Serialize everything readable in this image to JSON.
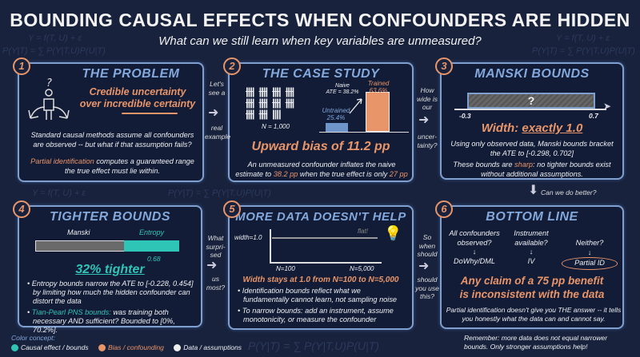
{
  "header": {
    "title": "BOUNDING CAUSAL EFFECTS WHEN CONFOUNDERS ARE HIDDEN",
    "subtitle": "What can we still learn when key variables are unmeasured?"
  },
  "background_formulas": [
    "Y = f(T, U) + ε",
    "P(Y|T) = ∑ P(Y|T,U)P(U|T)"
  ],
  "colors": {
    "background": "#18223d",
    "panel_border": "#7f9fcf",
    "title_blue": "#82a8dc",
    "orange": "#e8956a",
    "teal": "#2ec4b6"
  },
  "panels": [
    {
      "num": "1",
      "title": "THE PROBLEM",
      "headline1": "Credible uncertainty",
      "headline2": "over incredible certainty",
      "body": "Standard causal methods assume all confounders are observed -- but what if that assumption fails?",
      "hl": "Partial identification",
      "body2": " computes a guaranteed range the true effect must lie within.",
      "icon": "person-crossroads-question-icon"
    },
    {
      "num": "2",
      "title": "THE CASE STUDY",
      "n_label": "N = 1,000",
      "naive_label": "Naive",
      "naive_ate": "ATE = 38.2%",
      "untrained_label": "Untrained",
      "untrained_value": "25.4%",
      "trained_label": "Trained",
      "trained_value": "63.6%",
      "untrained_pct": 25.4,
      "trained_pct": 63.6,
      "headline": "Upward bias of 11.2 pp",
      "body_a": "An unmeasured confounder inflates the naive estimate to ",
      "body_b": "38.2 pp",
      "body_c": " when the true effect is only ",
      "body_d": "27 pp"
    },
    {
      "num": "3",
      "title": "MANSKI BOUNDS",
      "lower": "-0.3",
      "upper": "0.7",
      "unknown": "?",
      "headline_a": "Width: ",
      "headline_b": "exactly 1.0",
      "body": "Using only observed data, Manski bounds bracket the ATE to [-0.298, 0.702]",
      "body2a": "These bounds are ",
      "body2b": "sharp",
      "body2c": ": no tighter bounds exist without additional assumptions."
    },
    {
      "num": "4",
      "title": "TIGHTER BOUNDS",
      "bar1": "Manski",
      "bar2": "Entropy",
      "bar2_value": "0.68",
      "bar1_width": 1.0,
      "bar2_width": 0.68,
      "headline": "32% tighter",
      "bullet1": "Entropy bounds narrow the ATE to [-0.228, 0.454] by limiting how much the hidden confounder can distort the data",
      "bullet2a": "Tian-Pearl PNS bounds:",
      "bullet2b": " was training both necessary AND sufficient? Bounded to [0%, 70.2%]."
    },
    {
      "num": "5",
      "title": "MORE DATA DOESN'T HELP",
      "ylabel": "width=1.0",
      "flat": "flat!",
      "x_start": "N=100",
      "x_end": "N=5,000",
      "headline": "Width stays at 1.0 from N=100 to N=5,000",
      "bullet1": "Identification bounds reflect what we fundamentally cannot learn, not sampling noise",
      "bullet2": "To narrow bounds: add an instrument, assume monotonicity, or measure the confounder",
      "icon": "lightbulb-icon"
    },
    {
      "num": "6",
      "title": "BOTTOM LINE",
      "q1": "All confounders observed?",
      "a1": "DoWhy/DML",
      "q2": "Instrument available?",
      "a2": "IV",
      "q3": "Neither?",
      "a3": "Partial ID",
      "down": "↓",
      "headline1": "Any claim of a 75 pp benefit",
      "headline2": "is inconsistent with the data",
      "body": "Partial identification doesn't give you THE answer -- it tells you honestly what the data can and cannot say."
    }
  ],
  "connectors": [
    {
      "top": "Let's see a",
      "bottom": "real example"
    },
    {
      "top": "How wide is our",
      "bottom": "uncer-tainty?"
    },
    {
      "top": "Can we do better?"
    },
    {
      "top": "What surpri-sed",
      "bottom": "us most?"
    },
    {
      "top": "So when should",
      "bottom": "should you use this?"
    }
  ],
  "legend": {
    "title": "Color concept:",
    "items": [
      {
        "label": "Causal effect / bounds",
        "color": "#2ec4b6"
      },
      {
        "label": "Bias / confounding",
        "color": "#e8956a"
      },
      {
        "label": "Data / assumptions",
        "color": "#eeeeee"
      }
    ]
  },
  "footer": "Remember: more data does not equal narrower bounds. Only stronger assumptions help!"
}
